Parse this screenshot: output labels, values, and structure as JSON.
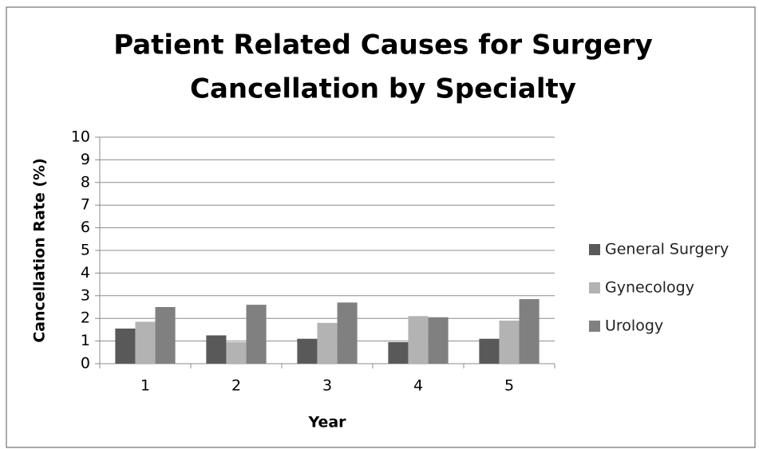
{
  "chart_data": {
    "type": "bar",
    "title": [
      "Patient Related Causes for Surgery",
      "Cancellation by Specialty"
    ],
    "x_label": "Year",
    "y_label": "Cancellation Rate (%)",
    "categories": [
      "1",
      "2",
      "3",
      "4",
      "5"
    ],
    "series": [
      {
        "name": "General Surgery",
        "color": "#595959",
        "values": [
          1.55,
          1.25,
          1.1,
          0.95,
          1.1
        ]
      },
      {
        "name": "Gynecology",
        "color": "#b3b3b3",
        "values": [
          1.85,
          0.95,
          1.8,
          2.1,
          1.9
        ]
      },
      {
        "name": "Urology",
        "color": "#808080",
        "values": [
          2.5,
          2.6,
          2.7,
          2.05,
          2.85
        ]
      }
    ],
    "ylim": [
      0,
      10
    ],
    "yticks": [
      0,
      1,
      2,
      3,
      4,
      5,
      6,
      7,
      8,
      9,
      10
    ],
    "grid": true,
    "legend": "right"
  }
}
